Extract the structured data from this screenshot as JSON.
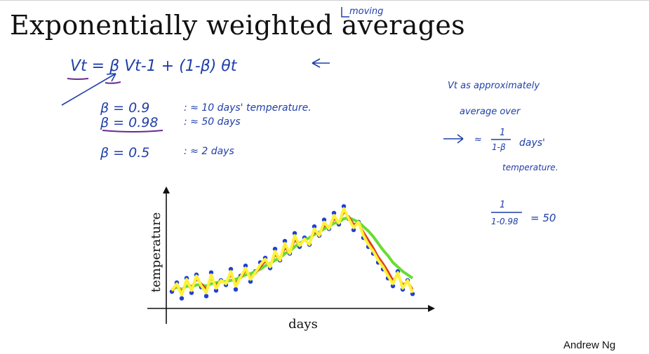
{
  "slide": {
    "title": "Exponentially weighted averages",
    "title_annotation": "moving",
    "author": "Andrew Ng"
  },
  "equation": {
    "main": "Vt = β Vt-1 + (1-β) θt",
    "lines": [
      {
        "beta": "β = 0.9",
        "approx": ": ≈ 10 days' temperature."
      },
      {
        "beta": "β = 0.98",
        "approx": ": ≈ 50 days"
      },
      {
        "beta": "β = 0.5",
        "approx": ": ≈ 2 days"
      }
    ]
  },
  "side_notes": {
    "line1": "Vt as approximately",
    "line2": "average over",
    "line3_prefix": "≈",
    "fraction_num": "1",
    "fraction_den": "1-β",
    "line3_suffix": "days'",
    "line4": "temperature.",
    "calc_num": "1",
    "calc_den": "1-0.98",
    "calc_result": "= 50"
  },
  "chart_data": {
    "type": "scatter",
    "xlabel": "days",
    "ylabel": "temperature",
    "x": [
      1,
      3,
      5,
      7,
      9,
      11,
      13,
      15,
      17,
      19,
      21,
      23,
      25,
      27,
      29,
      31,
      33,
      35,
      37,
      39,
      41,
      43,
      45,
      47,
      49,
      51,
      53,
      55,
      57,
      59,
      61,
      63,
      65,
      67,
      69,
      71,
      73,
      75,
      77,
      79,
      81,
      83,
      85,
      87,
      89,
      91,
      93,
      95,
      97,
      99
    ],
    "series": [
      {
        "values": [
          10,
          18,
          4,
          22,
          9,
          25,
          14,
          6,
          27,
          11,
          20,
          16,
          30,
          12,
          24,
          33,
          19,
          28,
          36,
          40,
          31,
          48,
          38,
          55,
          44,
          62,
          50,
          58,
          52,
          68,
          60,
          74,
          66,
          80,
          70,
          86,
          75,
          65,
          72,
          58,
          50,
          44,
          36,
          30,
          22,
          15,
          28,
          12,
          20,
          8
        ]
      },
      {
        "values": [
          12,
          14,
          12,
          15,
          14,
          16,
          16,
          15,
          17,
          18,
          19,
          19,
          20,
          21,
          23,
          25,
          26,
          28,
          30,
          33,
          35,
          38,
          40,
          44,
          46,
          50,
          53,
          56,
          58,
          61,
          63,
          66,
          68,
          71,
          72,
          75,
          76,
          74,
          72,
          68,
          64,
          59,
          53,
          47,
          42,
          36,
          32,
          28,
          25,
          22
        ]
      },
      {
        "values": [
          10,
          16,
          10,
          19,
          14,
          21,
          17,
          12,
          22,
          16,
          19,
          18,
          25,
          18,
          22,
          29,
          23,
          26,
          32,
          37,
          33,
          43,
          39,
          49,
          45,
          56,
          52,
          56,
          53,
          63,
          61,
          69,
          67,
          75,
          72,
          81,
          77,
          70,
          71,
          63,
          56,
          49,
          41,
          35,
          28,
          20,
          25,
          16,
          19,
          12
        ]
      },
      {
        "values": [
          11,
          17,
          7,
          21,
          11,
          24,
          15,
          9,
          25,
          13,
          20,
          17,
          28,
          15,
          23,
          31,
          21,
          27,
          34,
          39,
          32,
          46,
          38,
          53,
          44,
          60,
          51,
          57,
          52,
          66,
          60,
          72,
          66,
          78,
          71,
          84,
          75,
          67,
          72,
          60,
          52,
          46,
          38,
          32,
          24,
          17,
          27,
          13,
          20,
          9
        ]
      }
    ],
    "colors": {
      "points": "#1f3fd6",
      "green": "#66dd33",
      "red": "#e03c1a",
      "yellow": "#fff23a"
    }
  }
}
